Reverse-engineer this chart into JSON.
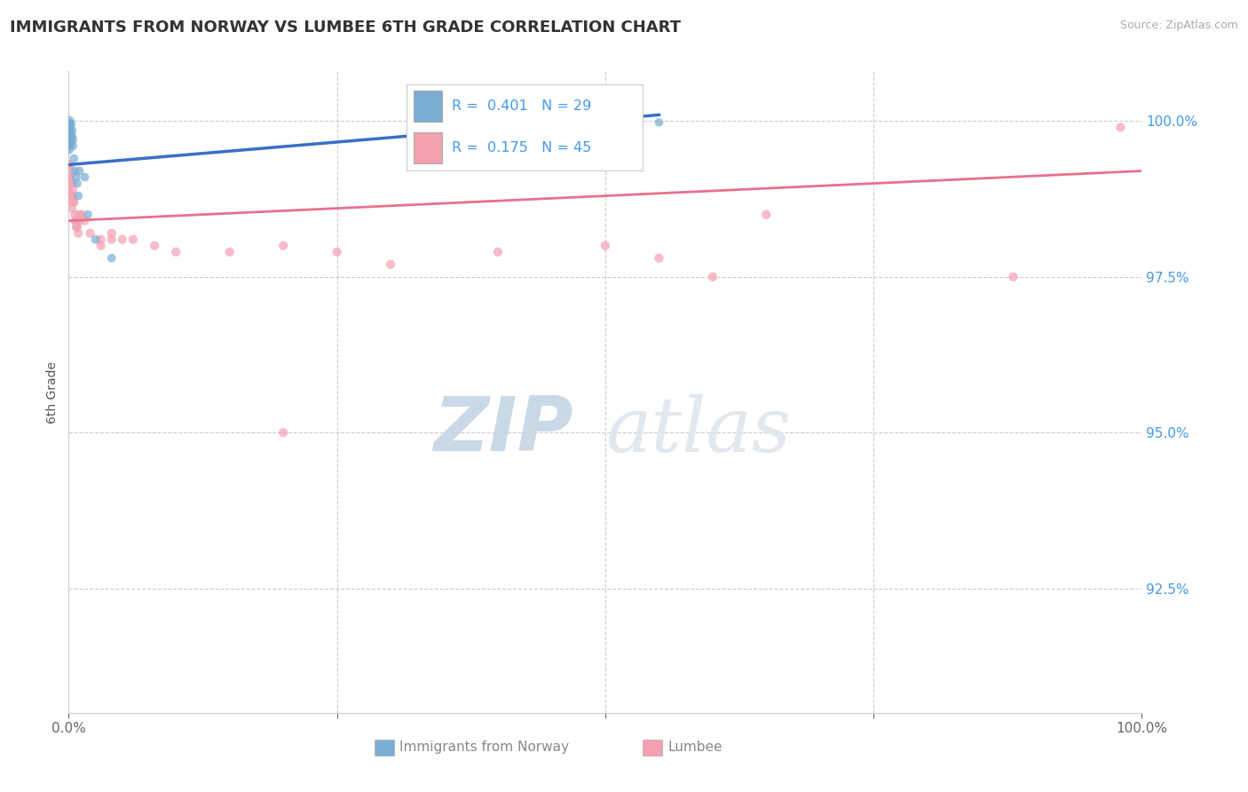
{
  "title": "IMMIGRANTS FROM NORWAY VS LUMBEE 6TH GRADE CORRELATION CHART",
  "source_text": "Source: ZipAtlas.com",
  "ylabel": "6th Grade",
  "ytick_labels": [
    "100.0%",
    "97.5%",
    "95.0%",
    "92.5%"
  ],
  "ytick_values": [
    1.0,
    0.975,
    0.95,
    0.925
  ],
  "xlim": [
    0.0,
    1.0
  ],
  "ylim": [
    0.905,
    1.008
  ],
  "background_color": "#ffffff",
  "grid_color": "#cccccc",
  "norway_color": "#7aadd4",
  "lumbee_color": "#f4a0b0",
  "norway_line_color": "#3a6fc7",
  "lumbee_line_color": "#e87090",
  "watermark_color": "#c8d8e8",
  "norway_scatter": [
    [
      0.0,
      1.0
    ],
    [
      0.0,
      0.9995
    ],
    [
      0.0,
      0.999
    ],
    [
      0.0,
      0.9985
    ],
    [
      0.0,
      0.998
    ],
    [
      0.0,
      0.9975
    ],
    [
      0.0,
      0.997
    ],
    [
      0.0,
      0.9965
    ],
    [
      0.0,
      0.996
    ],
    [
      0.0,
      0.9955
    ],
    [
      0.002,
      0.9995
    ],
    [
      0.002,
      0.998
    ],
    [
      0.002,
      0.9965
    ],
    [
      0.003,
      0.9985
    ],
    [
      0.003,
      0.9975
    ],
    [
      0.004,
      0.997
    ],
    [
      0.004,
      0.996
    ],
    [
      0.005,
      0.994
    ],
    [
      0.006,
      0.992
    ],
    [
      0.007,
      0.991
    ],
    [
      0.008,
      0.99
    ],
    [
      0.009,
      0.988
    ],
    [
      0.01,
      0.992
    ],
    [
      0.015,
      0.991
    ],
    [
      0.018,
      0.985
    ],
    [
      0.025,
      0.981
    ],
    [
      0.04,
      0.978
    ],
    [
      0.36,
      0.9995
    ],
    [
      0.55,
      0.9998
    ]
  ],
  "norway_sizes": [
    80,
    80,
    80,
    80,
    80,
    80,
    80,
    80,
    70,
    70,
    60,
    60,
    55,
    55,
    55,
    50,
    50,
    50,
    50,
    50,
    50,
    50,
    50,
    50,
    50,
    50,
    50,
    350,
    50
  ],
  "lumbee_scatter": [
    [
      0.0,
      0.993
    ],
    [
      0.0,
      0.991
    ],
    [
      0.0,
      0.989
    ],
    [
      0.001,
      0.993
    ],
    [
      0.001,
      0.991
    ],
    [
      0.002,
      0.992
    ],
    [
      0.002,
      0.99
    ],
    [
      0.002,
      0.988
    ],
    [
      0.003,
      0.99
    ],
    [
      0.003,
      0.988
    ],
    [
      0.003,
      0.986
    ],
    [
      0.004,
      0.989
    ],
    [
      0.004,
      0.987
    ],
    [
      0.005,
      0.987
    ],
    [
      0.006,
      0.985
    ],
    [
      0.006,
      0.984
    ],
    [
      0.007,
      0.984
    ],
    [
      0.007,
      0.983
    ],
    [
      0.008,
      0.983
    ],
    [
      0.009,
      0.982
    ],
    [
      0.01,
      0.985
    ],
    [
      0.01,
      0.984
    ],
    [
      0.012,
      0.985
    ],
    [
      0.015,
      0.984
    ],
    [
      0.02,
      0.982
    ],
    [
      0.03,
      0.981
    ],
    [
      0.03,
      0.98
    ],
    [
      0.04,
      0.982
    ],
    [
      0.04,
      0.981
    ],
    [
      0.05,
      0.981
    ],
    [
      0.06,
      0.981
    ],
    [
      0.08,
      0.98
    ],
    [
      0.1,
      0.979
    ],
    [
      0.15,
      0.979
    ],
    [
      0.2,
      0.98
    ],
    [
      0.25,
      0.979
    ],
    [
      0.3,
      0.977
    ],
    [
      0.4,
      0.979
    ],
    [
      0.5,
      0.98
    ],
    [
      0.55,
      0.978
    ],
    [
      0.6,
      0.975
    ],
    [
      0.65,
      0.985
    ],
    [
      0.88,
      0.975
    ],
    [
      0.2,
      0.95
    ],
    [
      0.98,
      0.999
    ]
  ],
  "lumbee_sizes": [
    55,
    55,
    55,
    55,
    55,
    55,
    55,
    55,
    55,
    55,
    55,
    55,
    55,
    55,
    55,
    55,
    55,
    55,
    55,
    55,
    55,
    55,
    55,
    55,
    55,
    55,
    55,
    55,
    55,
    55,
    55,
    55,
    55,
    55,
    55,
    55,
    55,
    55,
    55,
    55,
    55,
    55,
    55,
    55,
    55
  ],
  "norway_trend_x": [
    0.0,
    0.55
  ],
  "norway_trend_y": [
    0.993,
    1.001
  ],
  "lumbee_trend_x": [
    0.0,
    1.0
  ],
  "lumbee_trend_y": [
    0.984,
    0.992
  ]
}
